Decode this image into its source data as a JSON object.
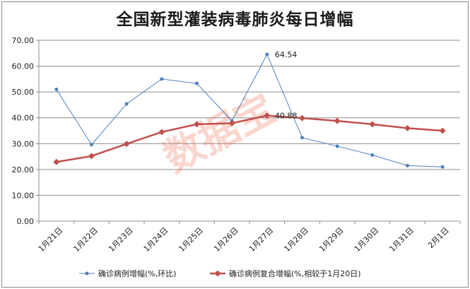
{
  "chart_data": {
    "type": "line",
    "title": "全国新型灌装病毒肺炎每日增幅",
    "categories": [
      "1月21日",
      "1月22日",
      "1月23日",
      "1月24日",
      "1月25日",
      "1月26日",
      "1月27日",
      "1月28日",
      "1月29日",
      "1月30日",
      "1月31日",
      "2月1日"
    ],
    "y_ticks": [
      "0.00",
      "10.00",
      "20.00",
      "30.00",
      "40.00",
      "50.00",
      "60.00",
      "70.00"
    ],
    "ylim": [
      0,
      70
    ],
    "grid": true,
    "legend_position": "bottom",
    "series": [
      {
        "name": "确诊病例增幅(%,环比)",
        "color": "#4f81bd",
        "marker": "circle",
        "values": [
          51.0,
          29.6,
          45.4,
          55.0,
          53.3,
          38.8,
          64.54,
          32.3,
          29.0,
          25.6,
          21.5,
          21.0
        ]
      },
      {
        "name": "确诊病例复合增幅(%,相较于1月20日)",
        "color": "#c0504d",
        "marker": "diamond",
        "values": [
          22.9,
          25.2,
          29.9,
          34.5,
          37.5,
          37.9,
          40.88,
          39.9,
          38.8,
          37.5,
          36.0,
          35.0
        ]
      }
    ],
    "annotations": [
      {
        "series": 0,
        "index": 6,
        "text": "64.54"
      },
      {
        "series": 1,
        "index": 6,
        "text": "40.88"
      }
    ]
  },
  "watermark": "数据宝"
}
